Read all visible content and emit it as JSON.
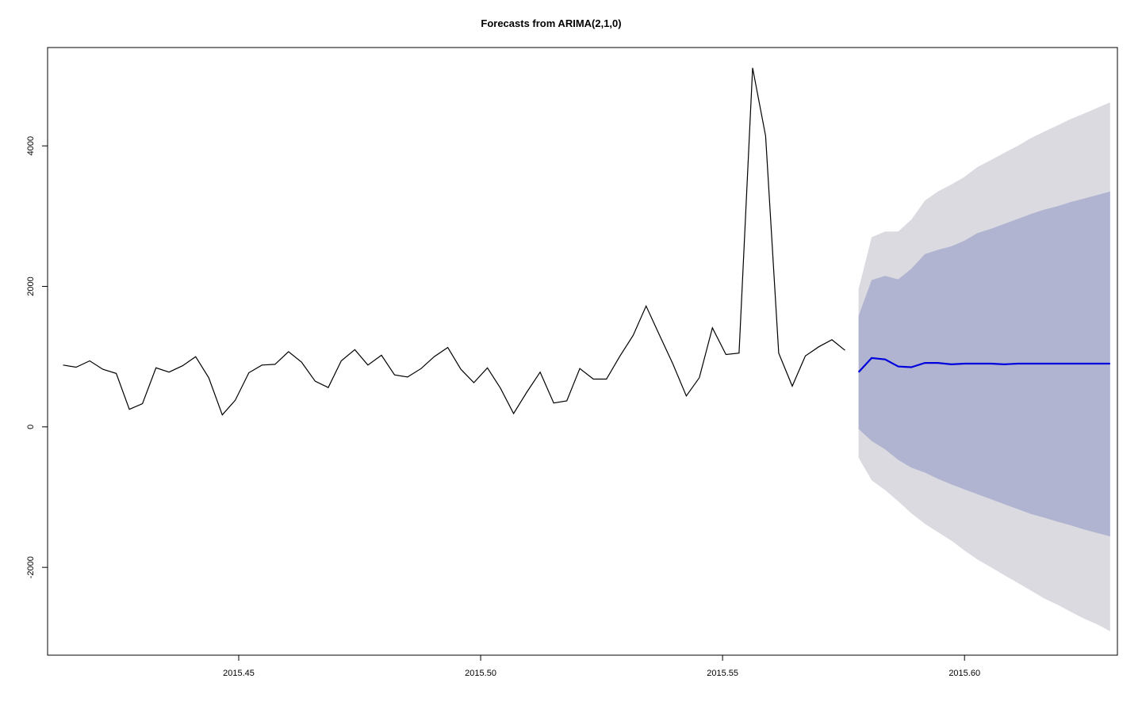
{
  "chart_data": {
    "type": "line",
    "title": "Forecasts from ARIMA(2,1,0)",
    "xlabel": "",
    "ylabel": "",
    "xlim": [
      2015.4105,
      2015.6316
    ],
    "ylim": [
      -3250,
      5400
    ],
    "x_ticks": [
      2015.45,
      2015.5,
      2015.55,
      2015.6
    ],
    "x_tick_labels": [
      "2015.45",
      "2015.50",
      "2015.55",
      "2015.60"
    ],
    "y_ticks": [
      -2000,
      0,
      2000,
      4000
    ],
    "y_tick_labels": [
      "-2000",
      "0",
      "2000",
      "4000"
    ],
    "grid": false,
    "legend": "none",
    "colors": {
      "observed": "#000000",
      "forecast": "#0000dd",
      "band80": "#b0b4d0",
      "band95": "#dadae0",
      "frame": "#000000"
    },
    "series": [
      {
        "type": "line",
        "x": [
          2015.4137,
          2015.4164,
          2015.4192,
          2015.4219,
          2015.4247,
          2015.4274,
          2015.4301,
          2015.4329,
          2015.4356,
          2015.4384,
          2015.4411,
          2015.4438,
          2015.4466,
          2015.4493,
          2015.4521,
          2015.4548,
          2015.4575,
          2015.4603,
          2015.463,
          2015.4658,
          2015.4685,
          2015.4712,
          2015.474,
          2015.4767,
          2015.4795,
          2015.4822,
          2015.4849,
          2015.4877,
          2015.4904,
          2015.4932,
          2015.4959,
          2015.4986,
          2015.5014,
          2015.5041,
          2015.5068,
          2015.5096,
          2015.5123,
          2015.5151,
          2015.5178,
          2015.5205,
          2015.5233,
          2015.526,
          2015.5288,
          2015.5315,
          2015.5342,
          2015.537,
          2015.5397,
          2015.5425,
          2015.5452,
          2015.5479,
          2015.5507,
          2015.5534,
          2015.5562,
          2015.5589,
          2015.5616,
          2015.5644,
          2015.5671,
          2015.5699,
          2015.5726,
          2015.5753
        ],
        "values": [
          880,
          850,
          940,
          820,
          760,
          250,
          330,
          840,
          780,
          870,
          1000,
          700,
          170,
          380,
          770,
          880,
          890,
          1070,
          920,
          650,
          560,
          940,
          1100,
          880,
          1020,
          740,
          710,
          830,
          1000,
          1130,
          820,
          630,
          840,
          550,
          190,
          500,
          780,
          340,
          370,
          830,
          680,
          680,
          1010,
          1300,
          1720,
          1300,
          900,
          440,
          700,
          1410,
          1030,
          1050,
          5110,
          4140,
          1050,
          580,
          1010,
          1140,
          1240,
          1090
        ]
      },
      {
        "type": "line",
        "x": [
          2015.5781,
          2015.5808,
          2015.5836,
          2015.5863,
          2015.589,
          2015.5918,
          2015.5945,
          2015.5973,
          2015.6,
          2015.6027,
          2015.6055,
          2015.6082,
          2015.611,
          2015.6137,
          2015.6164,
          2015.6192,
          2015.6219,
          2015.6247,
          2015.6274,
          2015.6301
        ],
        "values": [
          780,
          980,
          960,
          860,
          850,
          910,
          910,
          890,
          900,
          900,
          900,
          890,
          900,
          900,
          900,
          900,
          900,
          900,
          900,
          900
        ]
      },
      {
        "type": "area",
        "x": [
          2015.5781,
          2015.5808,
          2015.5836,
          2015.5863,
          2015.589,
          2015.5918,
          2015.5945,
          2015.5973,
          2015.6,
          2015.6027,
          2015.6055,
          2015.6082,
          2015.611,
          2015.6137,
          2015.6164,
          2015.6192,
          2015.6219,
          2015.6247,
          2015.6274,
          2015.6301
        ],
        "lower": [
          -30,
          -200,
          -320,
          -470,
          -580,
          -650,
          -740,
          -820,
          -890,
          -960,
          -1030,
          -1100,
          -1170,
          -1240,
          -1290,
          -1350,
          -1400,
          -1460,
          -1510,
          -1560
        ],
        "upper": [
          1580,
          2090,
          2150,
          2100,
          2250,
          2460,
          2520,
          2570,
          2650,
          2760,
          2820,
          2890,
          2960,
          3030,
          3090,
          3140,
          3200,
          3250,
          3300,
          3350
        ]
      },
      {
        "type": "area",
        "x": [
          2015.5781,
          2015.5808,
          2015.5836,
          2015.5863,
          2015.589,
          2015.5918,
          2015.5945,
          2015.5973,
          2015.6,
          2015.6027,
          2015.6055,
          2015.6082,
          2015.611,
          2015.6137,
          2015.6164,
          2015.6192,
          2015.6219,
          2015.6247,
          2015.6274,
          2015.6301
        ],
        "lower": [
          -440,
          -760,
          -900,
          -1060,
          -1230,
          -1380,
          -1500,
          -1620,
          -1760,
          -1890,
          -2000,
          -2110,
          -2220,
          -2330,
          -2440,
          -2530,
          -2630,
          -2730,
          -2810,
          -2910
        ],
        "upper": [
          1960,
          2700,
          2780,
          2780,
          2950,
          3220,
          3350,
          3450,
          3560,
          3700,
          3800,
          3900,
          4000,
          4110,
          4200,
          4290,
          4380,
          4460,
          4540,
          4620
        ]
      }
    ]
  }
}
